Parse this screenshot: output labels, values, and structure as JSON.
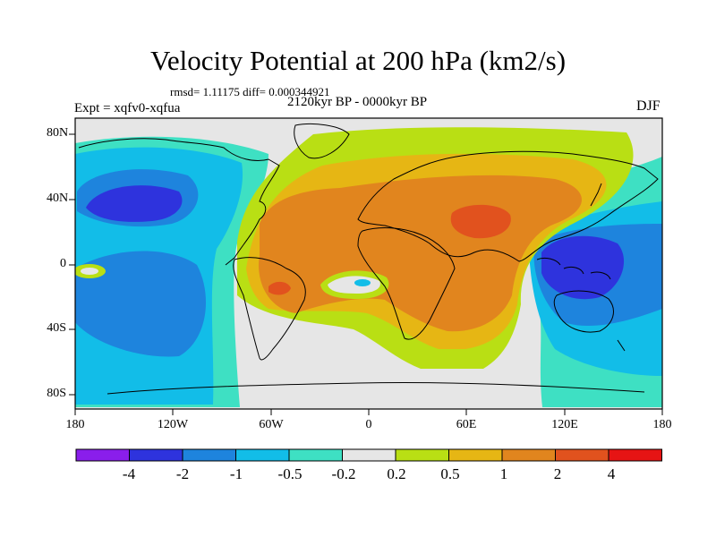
{
  "header": {
    "title": "Velocity Potential at 200 hPa (km2/s)",
    "stats": "rmsd= 1.11175 diff= 0.000344921",
    "experiment": "Expt = xqfv0-xqfua",
    "period": "2120kyr BP - 0000kyr BP",
    "season": "DJF"
  },
  "axes": {
    "lat_labels": [
      "80N",
      "40N",
      "0",
      "40S",
      "80S"
    ],
    "lon_labels": [
      "180",
      "120W",
      "60W",
      "0",
      "60E",
      "120E",
      "180"
    ]
  },
  "colorbar": {
    "tick_labels": [
      "-4",
      "-2",
      "-1",
      "-0.5",
      "-0.2",
      "0.2",
      "0.5",
      "1",
      "2",
      "4"
    ],
    "colors": [
      "#8a1eeb",
      "#2e33dd",
      "#1e84dd",
      "#12bde8",
      "#3ee0c3",
      "#e6e6e6",
      "#b9df14",
      "#e6b614",
      "#e1851e",
      "#e1521e",
      "#e61414"
    ]
  }
}
